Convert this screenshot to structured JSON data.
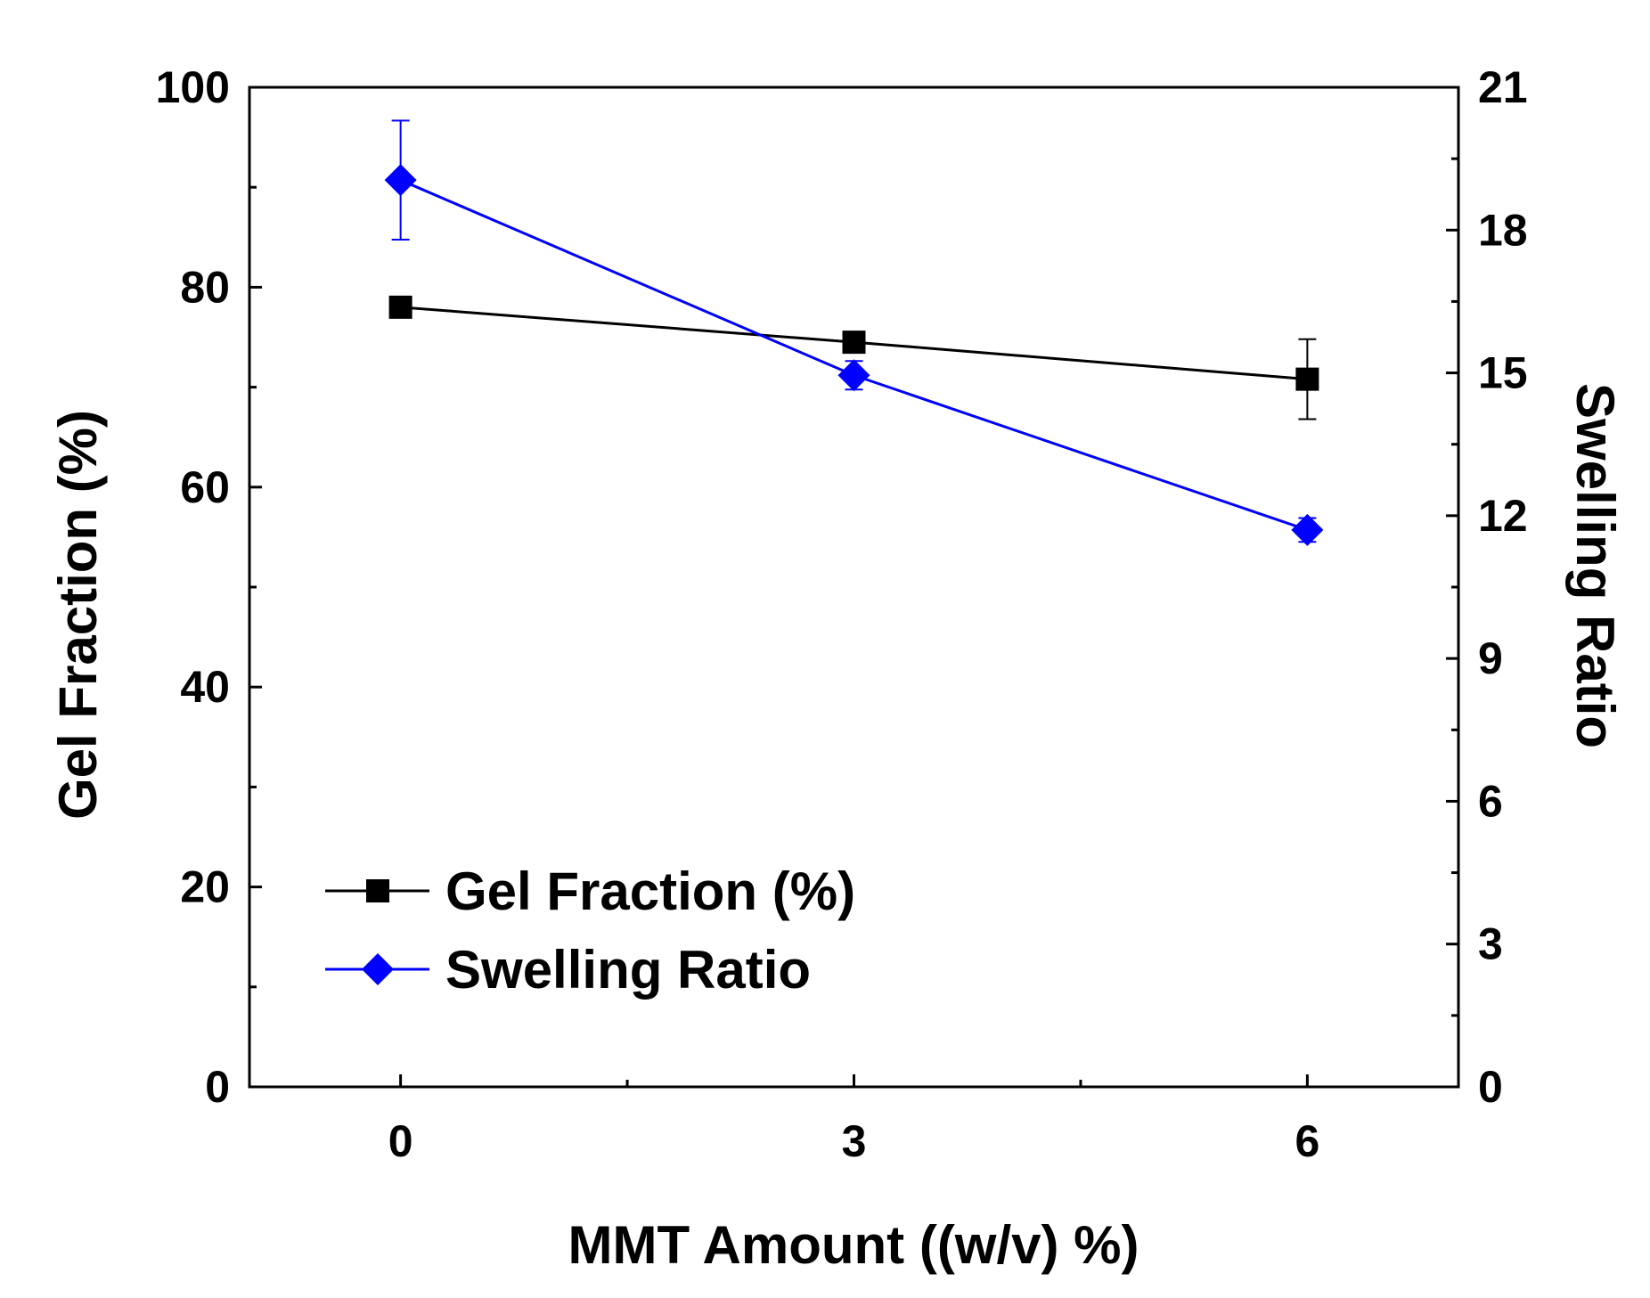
{
  "chart_data": {
    "type": "line",
    "xlabel": "MMT Amount ((w/v) %)",
    "ylabel": "Gel Fraction (%)",
    "y2label": "Swelling Ratio",
    "x": [
      0,
      3,
      6
    ],
    "x_ticks": [
      "0",
      "3",
      "6"
    ],
    "xlim": [
      -1,
      7
    ],
    "ylim": [
      0,
      100
    ],
    "y_ticks": [
      "0",
      "20",
      "40",
      "60",
      "80",
      "100"
    ],
    "y2lim": [
      0,
      21
    ],
    "y2_ticks": [
      "0",
      "3",
      "6",
      "9",
      "12",
      "15",
      "18",
      "21"
    ],
    "legend_position": "bottom-left",
    "series": [
      {
        "name": "Gel Fraction (%)",
        "axis": "left",
        "color": "#000000",
        "marker": "square",
        "values": [
          78.0,
          74.5,
          70.8
        ],
        "errors": [
          0.8,
          0.6,
          4.0
        ]
      },
      {
        "name": "Swelling Ratio",
        "axis": "right",
        "color": "#0000ff",
        "marker": "diamond",
        "values": [
          19.05,
          14.95,
          11.7
        ],
        "errors": [
          1.25,
          0.3,
          0.25
        ]
      }
    ]
  }
}
